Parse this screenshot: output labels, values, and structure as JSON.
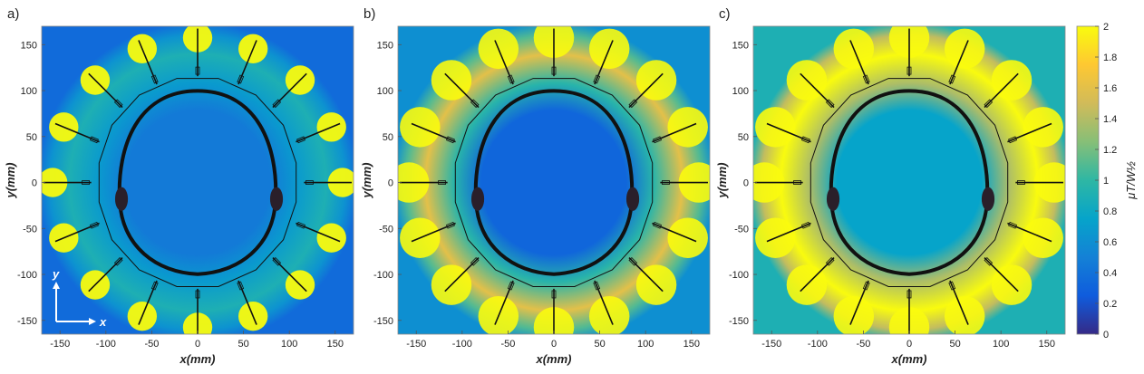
{
  "chart_data": [
    {
      "type": "heatmap",
      "panel_label": "a)",
      "xlabel": "x(mm)",
      "ylabel": "y(mm)",
      "xlim": [
        -170,
        170
      ],
      "ylim": [
        -165,
        170
      ],
      "xticks": [
        -150,
        -100,
        -50,
        0,
        50,
        100,
        150
      ],
      "yticks": [
        -150,
        -100,
        -50,
        0,
        50,
        100,
        150
      ],
      "xtick_labels": [
        "-150",
        "-100",
        "-50",
        "0",
        "50",
        "100",
        "150"
      ],
      "ytick_labels": [
        "-150",
        "-100",
        "-50",
        "0",
        "50",
        "100",
        "150"
      ],
      "coil_elements": 16,
      "coil_radius_mm": 160,
      "hotspot_value": 2.0,
      "ring_value": 0.9,
      "background_value": 0.35,
      "head_value": 0.45,
      "axes_inset": {
        "y_label": "y",
        "x_label": "x"
      }
    },
    {
      "type": "heatmap",
      "panel_label": "b)",
      "xlabel": "x(mm)",
      "ylabel": "y(mm)",
      "xlim": [
        -170,
        170
      ],
      "ylim": [
        -165,
        170
      ],
      "xticks": [
        -150,
        -100,
        -50,
        0,
        50,
        100,
        150
      ],
      "yticks": [
        -150,
        -100,
        -50,
        0,
        50,
        100,
        150
      ],
      "xtick_labels": [
        "-150",
        "-100",
        "-50",
        "0",
        "50",
        "100",
        "150"
      ],
      "ytick_labels": [
        "-150",
        "-100",
        "-50",
        "0",
        "50",
        "100",
        "150"
      ],
      "coil_elements": 16,
      "coil_radius_mm": 160,
      "hotspot_value": 2.0,
      "ring_value": 1.6,
      "background_value": 0.6,
      "head_value": 0.32
    },
    {
      "type": "heatmap",
      "panel_label": "c)",
      "xlabel": "x(mm)",
      "ylabel": "y(mm)",
      "xlim": [
        -170,
        170
      ],
      "ylim": [
        -165,
        170
      ],
      "xticks": [
        -150,
        -100,
        -50,
        0,
        50,
        100,
        150
      ],
      "yticks": [
        -150,
        -100,
        -50,
        0,
        50,
        100,
        150
      ],
      "xtick_labels": [
        "-150",
        "-100",
        "-50",
        "0",
        "50",
        "100",
        "150"
      ],
      "ytick_labels": [
        "-150",
        "-100",
        "-50",
        "0",
        "50",
        "100",
        "150"
      ],
      "coil_elements": 16,
      "coil_radius_mm": 160,
      "hotspot_value": 2.0,
      "ring_value": 2.0,
      "background_value": 0.9,
      "head_value": 0.75
    }
  ],
  "colorbar": {
    "label": "μT/W½",
    "min": 0,
    "max": 2,
    "ticks": [
      0,
      0.2,
      0.4,
      0.6,
      0.8,
      1,
      1.2,
      1.4,
      1.6,
      1.8,
      2
    ],
    "tick_labels": [
      "0",
      "0.2",
      "0.4",
      "0.6",
      "0.8",
      "1",
      "1.2",
      "1.4",
      "1.6",
      "1.8",
      "2"
    ],
    "colormap": "parula",
    "stops": [
      "#352a87",
      "#0f5cdd",
      "#1481d6",
      "#06a4ca",
      "#2eb7a4",
      "#87bf77",
      "#d1bb59",
      "#fec832",
      "#f9fb0e"
    ]
  }
}
